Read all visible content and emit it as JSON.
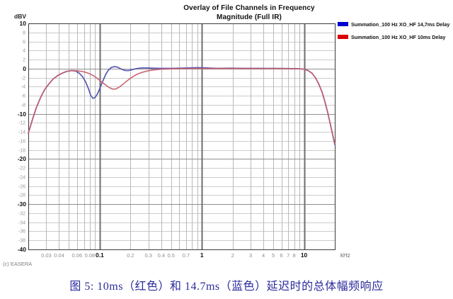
{
  "title": {
    "line1": "Overlay of File Channels in Frequency",
    "line2": "Magnitude (Full IR)"
  },
  "legend": [
    {
      "label": "Summation_100 Hz XO_HF 14,7ms Delay",
      "color": "#0000cc"
    },
    {
      "label": "Summation_100 Hz XO_HF 10ms Delay",
      "color": "#dd0000"
    }
  ],
  "watermark": "(c) EASERA",
  "caption": "图 5: 10ms（红色）和 14.7ms（蓝色）延迟时的总体幅频响应",
  "chart_data": {
    "type": "line",
    "x_scale": "log",
    "xlim": [
      0.02,
      20
    ],
    "ylim": [
      -40,
      10
    ],
    "xlabel": "kHz",
    "ylabel": "dBV",
    "grid": true,
    "legend_position": "top-right",
    "x_grid_minor": [
      0.03,
      0.04,
      0.05,
      0.06,
      0.07,
      0.08,
      0.09,
      0.2,
      0.3,
      0.4,
      0.5,
      0.6,
      0.7,
      0.8,
      0.9,
      2,
      3,
      4,
      5,
      6,
      7,
      8,
      9
    ],
    "x_grid_major": [
      0.1,
      1,
      10
    ],
    "x_ticks_minor_labeled": [
      "0.03",
      "0.04",
      "0.06",
      "0.08",
      "0.2",
      "0.3",
      "0.4",
      "0.5",
      "0.7",
      "2",
      "3",
      "4",
      "5",
      "6",
      "7",
      "8"
    ],
    "x_ticks_major_labeled": [
      "0.1",
      "1",
      "10"
    ],
    "y_grid_minor": [
      8,
      6,
      4,
      2,
      -2,
      -4,
      -6,
      -8,
      -12,
      -14,
      -16,
      -18,
      -22,
      -24,
      -26,
      -28,
      -32,
      -34,
      -36,
      -38
    ],
    "y_grid_major": [
      0,
      -10,
      -20,
      -30
    ],
    "y_ticks_major_labeled": [
      "10",
      "0",
      "-10",
      "-20",
      "-30",
      "-40"
    ],
    "y_ticks_major_values": [
      10,
      0,
      -10,
      -20,
      -30,
      -40
    ],
    "series": [
      {
        "name": "Summation_100 Hz XO_HF 14,7ms Delay",
        "color": "#4a4aae",
        "points": [
          [
            0.02,
            -14.3
          ],
          [
            0.022,
            -11.2
          ],
          [
            0.024,
            -8.6
          ],
          [
            0.0265,
            -6.3
          ],
          [
            0.029,
            -4.6
          ],
          [
            0.032,
            -3.3
          ],
          [
            0.035,
            -2.3
          ],
          [
            0.039,
            -1.5
          ],
          [
            0.043,
            -1.0
          ],
          [
            0.048,
            -0.6
          ],
          [
            0.053,
            -0.45
          ],
          [
            0.058,
            -0.55
          ],
          [
            0.063,
            -1.0
          ],
          [
            0.068,
            -1.8
          ],
          [
            0.073,
            -3.0
          ],
          [
            0.078,
            -4.6
          ],
          [
            0.082,
            -6.0
          ],
          [
            0.086,
            -6.6
          ],
          [
            0.09,
            -6.4
          ],
          [
            0.095,
            -5.6
          ],
          [
            0.101,
            -4.2
          ],
          [
            0.108,
            -2.6
          ],
          [
            0.115,
            -1.2
          ],
          [
            0.122,
            -0.3
          ],
          [
            0.13,
            0.25
          ],
          [
            0.14,
            0.45
          ],
          [
            0.15,
            0.3
          ],
          [
            0.162,
            -0.1
          ],
          [
            0.175,
            -0.4
          ],
          [
            0.19,
            -0.45
          ],
          [
            0.207,
            -0.25
          ],
          [
            0.228,
            0.0
          ],
          [
            0.26,
            0.15
          ],
          [
            0.3,
            0.12
          ],
          [
            0.38,
            0.05
          ],
          [
            0.5,
            0.05
          ],
          [
            0.7,
            0.12
          ],
          [
            0.9,
            0.2
          ],
          [
            1.1,
            0.15
          ],
          [
            1.4,
            0.05
          ],
          [
            1.9,
            0.1
          ],
          [
            2.6,
            0.05
          ],
          [
            4,
            0.05
          ],
          [
            6,
            0.03
          ],
          [
            8.5,
            0.0
          ],
          [
            10,
            -0.12
          ],
          [
            11,
            -0.45
          ],
          [
            12,
            -1.05
          ],
          [
            13,
            -2.1
          ],
          [
            14,
            -3.5
          ],
          [
            15,
            -5.2
          ],
          [
            16,
            -7.3
          ],
          [
            17,
            -9.6
          ],
          [
            18,
            -12.1
          ],
          [
            19,
            -14.5
          ],
          [
            20,
            -16.8
          ]
        ]
      },
      {
        "name": "Summation_100 Hz XO_HF 10ms Delay",
        "color": "#c7606f",
        "points": [
          [
            0.02,
            -14.3
          ],
          [
            0.022,
            -11.2
          ],
          [
            0.024,
            -8.6
          ],
          [
            0.0265,
            -6.3
          ],
          [
            0.029,
            -4.6
          ],
          [
            0.032,
            -3.3
          ],
          [
            0.035,
            -2.3
          ],
          [
            0.039,
            -1.5
          ],
          [
            0.043,
            -1.0
          ],
          [
            0.048,
            -0.6
          ],
          [
            0.053,
            -0.42
          ],
          [
            0.06,
            -0.5
          ],
          [
            0.068,
            -0.65
          ],
          [
            0.076,
            -0.95
          ],
          [
            0.085,
            -1.45
          ],
          [
            0.094,
            -2.1
          ],
          [
            0.104,
            -2.9
          ],
          [
            0.114,
            -3.6
          ],
          [
            0.124,
            -4.2
          ],
          [
            0.134,
            -4.55
          ],
          [
            0.144,
            -4.5
          ],
          [
            0.155,
            -4.1
          ],
          [
            0.168,
            -3.5
          ],
          [
            0.182,
            -2.85
          ],
          [
            0.198,
            -2.2
          ],
          [
            0.216,
            -1.65
          ],
          [
            0.238,
            -1.15
          ],
          [
            0.263,
            -0.8
          ],
          [
            0.295,
            -0.5
          ],
          [
            0.34,
            -0.28
          ],
          [
            0.4,
            -0.12
          ],
          [
            0.5,
            -0.04
          ],
          [
            0.65,
            0.0
          ],
          [
            0.9,
            0.02
          ],
          [
            1.3,
            0.02
          ],
          [
            2,
            0.03
          ],
          [
            3,
            0.0
          ],
          [
            5,
            0.0
          ],
          [
            7,
            0.0
          ],
          [
            9,
            -0.05
          ],
          [
            10,
            -0.12
          ],
          [
            11,
            -0.45
          ],
          [
            12,
            -1.05
          ],
          [
            13,
            -2.1
          ],
          [
            14,
            -3.5
          ],
          [
            15,
            -5.2
          ],
          [
            16,
            -7.3
          ],
          [
            17,
            -9.6
          ],
          [
            18,
            -12.1
          ],
          [
            19,
            -14.5
          ],
          [
            20,
            -16.6
          ]
        ]
      }
    ]
  }
}
